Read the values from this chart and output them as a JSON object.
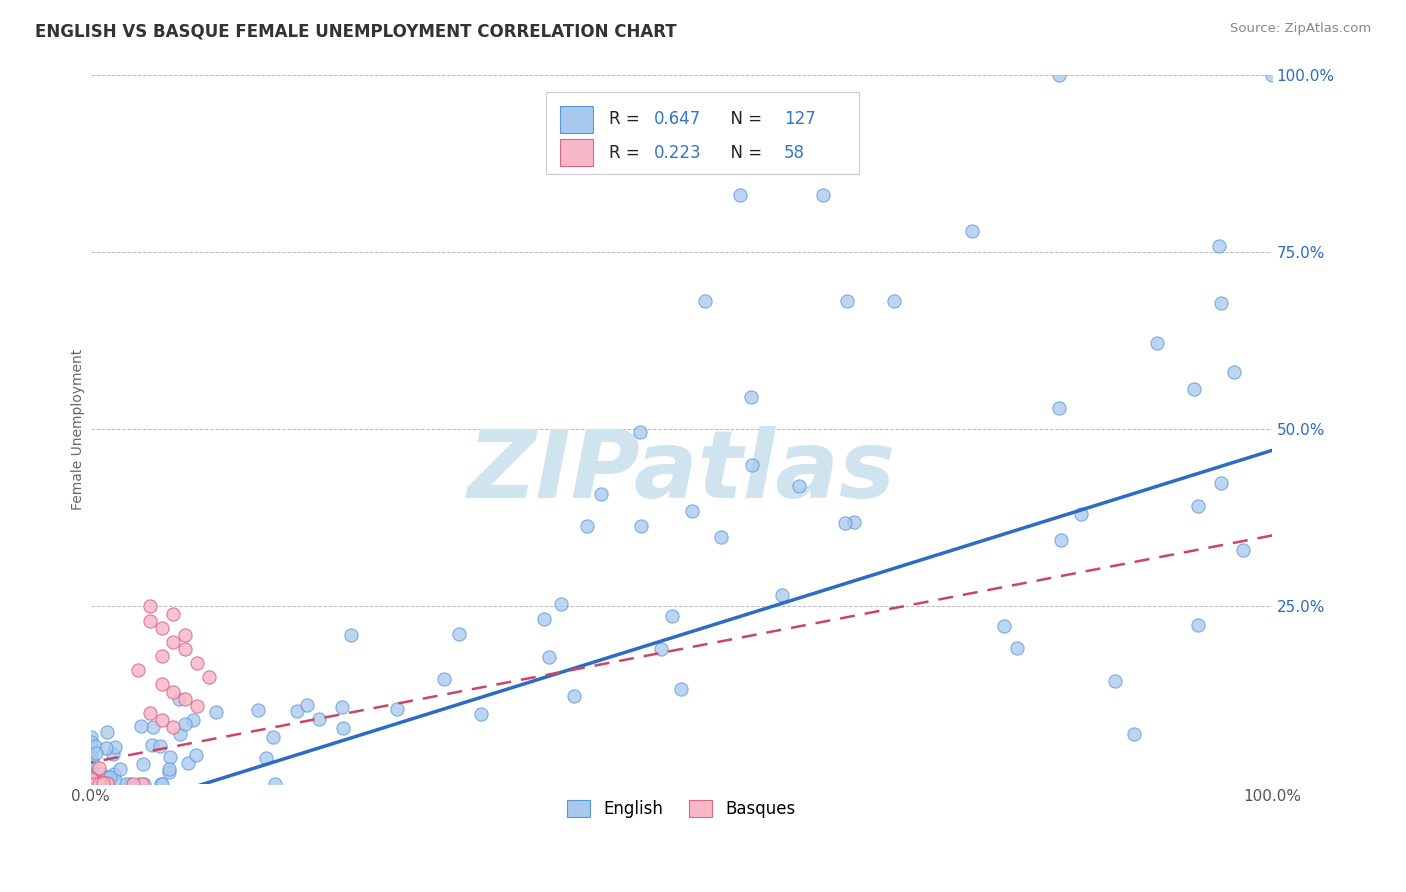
{
  "title": "ENGLISH VS BASQUE FEMALE UNEMPLOYMENT CORRELATION CHART",
  "source": "Source: ZipAtlas.com",
  "ylabel": "Female Unemployment",
  "english_R": 0.647,
  "english_N": 127,
  "basque_R": 0.223,
  "basque_N": 58,
  "english_color": "#A8C8EE",
  "english_edge_color": "#5599DD",
  "english_line_color": "#2B6CC4",
  "basque_color": "#F8B8C8",
  "basque_edge_color": "#DD6688",
  "basque_line_color": "#CC4466",
  "background_color": "#FFFFFF",
  "grid_color": "#BBBBBB",
  "legend_label_english": "English",
  "legend_label_basque": "Basques",
  "ytick_vals": [
    0,
    0.25,
    0.5,
    0.75,
    1.0
  ],
  "ytick_labels": [
    "0.0%",
    "25.0%",
    "50.0%",
    "75.0%",
    "100.0%"
  ],
  "stat_color": "#3377CC",
  "watermark_color": "#D0E4F0"
}
